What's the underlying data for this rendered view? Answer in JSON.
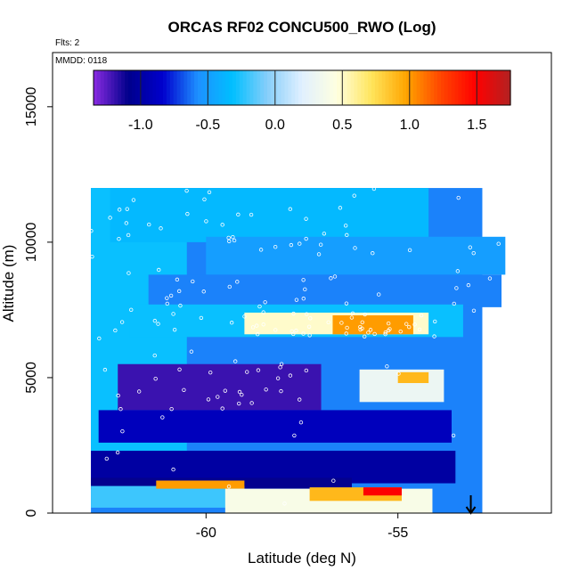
{
  "chart_data": {
    "type": "heatmap",
    "title": "ORCAS RF02 CONCU500_RWO (Log)",
    "annotations": {
      "flights": "Flts: 2",
      "date": "MMDD: 0118"
    },
    "xlabel": "Latitude (deg N)",
    "ylabel": "Altitude (m)",
    "xlim": [
      -64,
      -51
    ],
    "ylim": [
      0,
      17000
    ],
    "x_ticks": [
      -60,
      -55
    ],
    "y_ticks": [
      0,
      5000,
      10000,
      15000
    ],
    "x_tick_labels": [
      "-60",
      "-55"
    ],
    "y_tick_labels": [
      "0",
      "5000",
      "10000",
      "15000"
    ],
    "colorbar": {
      "range": [
        -1.35,
        1.75
      ],
      "ticks": [
        -1.0,
        -0.5,
        0.0,
        0.5,
        1.0,
        1.5
      ],
      "tick_labels": [
        "-1.0",
        "-0.5",
        "0.0",
        "0.5",
        "1.0",
        "1.5"
      ],
      "colors": [
        "#8a2be2",
        "#00008b",
        "#0000cd",
        "#1e90ff",
        "#00bfff",
        "#87cefa",
        "#e0f0ff",
        "#ffffe0",
        "#ffe55c",
        "#ffa500",
        "#ff4500",
        "#ff0000",
        "#b22222"
      ],
      "placement": "top inside plot"
    },
    "grid": false,
    "regions": [
      {
        "x": [
          -63.0,
          -52.8
        ],
        "y": [
          0,
          12000
        ],
        "value": -0.6
      },
      {
        "x": [
          -63.0,
          -60.5
        ],
        "y": [
          2000,
          12000
        ],
        "value": -0.3
      },
      {
        "x": [
          -62.5,
          -54.2
        ],
        "y": [
          10000,
          12000
        ],
        "value": -0.35
      },
      {
        "x": [
          -60.0,
          -52.2
        ],
        "y": [
          8800,
          10200
        ],
        "value": -0.5
      },
      {
        "x": [
          -61.5,
          -52.3
        ],
        "y": [
          7600,
          8800
        ],
        "value": -0.6
      },
      {
        "x": [
          -62.0,
          -53.3
        ],
        "y": [
          6500,
          7700
        ],
        "value": -0.3
      },
      {
        "x": [
          -59.0,
          -54.2
        ],
        "y": [
          6600,
          7400
        ],
        "value": 0.5
      },
      {
        "x": [
          -56.7,
          -54.6
        ],
        "y": [
          6600,
          7300
        ],
        "value": 1.0
      },
      {
        "x": [
          -62.3,
          -57.0
        ],
        "y": [
          3800,
          5500
        ],
        "value": -1.2
      },
      {
        "x": [
          -56.0,
          -53.8
        ],
        "y": [
          4100,
          5300
        ],
        "value": 0.3
      },
      {
        "x": [
          -55.0,
          -54.2
        ],
        "y": [
          4800,
          5200
        ],
        "value": 0.9
      },
      {
        "x": [
          -62.8,
          -53.6
        ],
        "y": [
          2600,
          3800
        ],
        "value": -0.9
      },
      {
        "x": [
          -63.0,
          -53.5
        ],
        "y": [
          1100,
          2300
        ],
        "value": -1.0
      },
      {
        "x": [
          -63.0,
          -56.2
        ],
        "y": [
          900,
          1300
        ],
        "value": -1.1
      },
      {
        "x": [
          -63.0,
          -59.0
        ],
        "y": [
          200,
          1000
        ],
        "value": -0.2
      },
      {
        "x": [
          -61.3,
          -59.0
        ],
        "y": [
          900,
          1200
        ],
        "value": 1.0
      },
      {
        "x": [
          -59.5,
          -54.1
        ],
        "y": [
          0,
          900
        ],
        "value": 0.4
      },
      {
        "x": [
          -57.3,
          -54.9
        ],
        "y": [
          450,
          950
        ],
        "value": 0.9
      },
      {
        "x": [
          -55.9,
          -54.9
        ],
        "y": [
          650,
          950
        ],
        "value": 1.5
      }
    ],
    "arrow_marker": {
      "x": -53.1,
      "y": 0
    }
  }
}
